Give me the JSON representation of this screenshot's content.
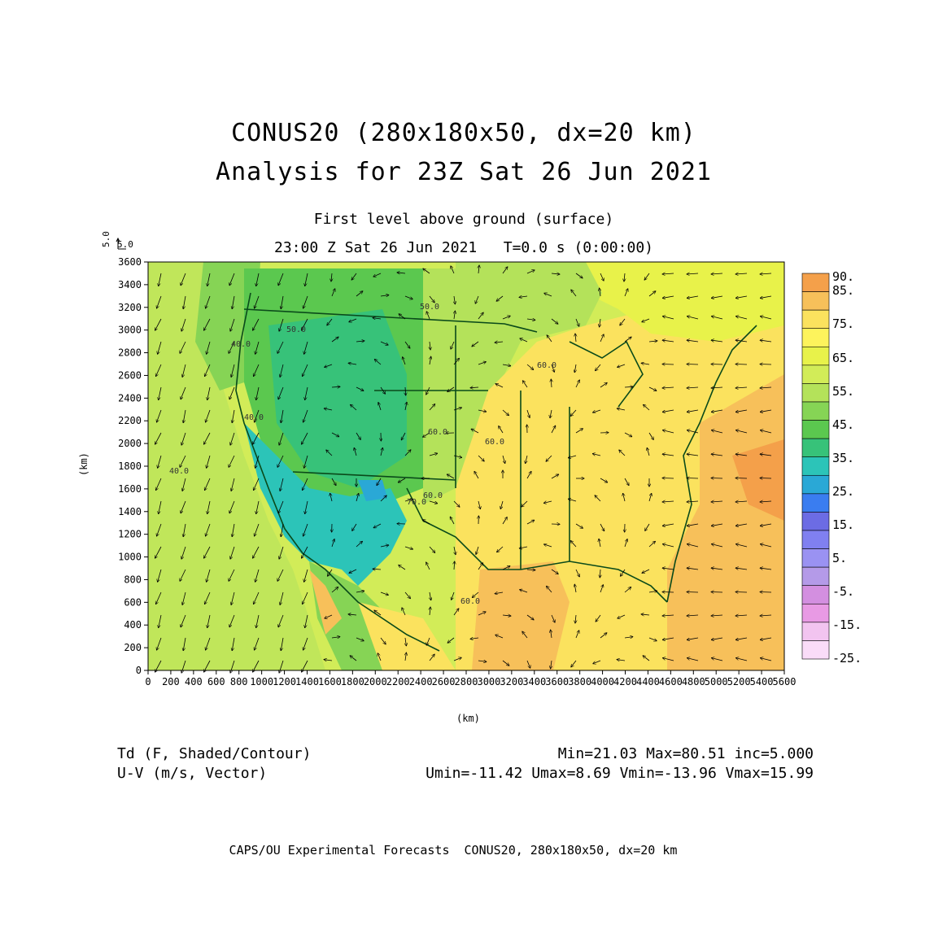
{
  "title": {
    "line1": "CONUS20 (280x180x50, dx=20 km)",
    "line2": "Analysis for 23Z Sat 26 Jun 2021"
  },
  "subtitle": {
    "level": "First level above ground (surface)",
    "time": "23:00 Z Sat 26 Jun 2021   T=0.0 s (0:00:00)"
  },
  "reference_vector": {
    "u_label": "5.0",
    "v_label": "5.0"
  },
  "axes": {
    "x_label": "(km)",
    "y_label": "(km)",
    "x_ticks": [
      "0",
      "200",
      "400",
      "600",
      "800",
      "1000",
      "1200",
      "1400",
      "1600",
      "1800",
      "2000",
      "2200",
      "2400",
      "2600",
      "2800",
      "3000",
      "3200",
      "3400",
      "3600",
      "3800",
      "4000",
      "4200",
      "4400",
      "4600",
      "4800",
      "5000",
      "5200",
      "5400",
      "5600"
    ],
    "y_ticks": [
      "0",
      "200",
      "400",
      "600",
      "800",
      "1000",
      "1200",
      "1400",
      "1600",
      "1800",
      "2000",
      "2200",
      "2400",
      "2600",
      "2800",
      "3000",
      "3200",
      "3400",
      "3600"
    ],
    "x_range": [
      0,
      5600
    ],
    "y_range": [
      0,
      3600
    ]
  },
  "colorbar": {
    "labels": [
      "90.",
      "85.",
      "75.",
      "65.",
      "55.",
      "45.",
      "35.",
      "25.",
      "15.",
      "5.",
      "-5.",
      "-15.",
      "-25."
    ],
    "colors": [
      "#f4a04a",
      "#f7c05a",
      "#fbe25e",
      "#fdf35c",
      "#e8f24a",
      "#d2ec58",
      "#b4e25a",
      "#86d455",
      "#5bc84f",
      "#37c279",
      "#2cc4b8",
      "#2aa8d6",
      "#3a7df0",
      "#6c6ce4",
      "#8080f0",
      "#9a92f2",
      "#b49ae8",
      "#d38fe0",
      "#e89ae4",
      "#f2c4f0",
      "#fadcf8"
    ]
  },
  "contour_labels": [
    "50.0",
    "50.0",
    "40.0",
    "40.0",
    "60.0",
    "60.0",
    "40.0",
    "60.0",
    "60.0",
    "60.0",
    "70.0"
  ],
  "field_info": {
    "td_label": "Td (F, Shaded/Contour)",
    "uv_label": "U-V (m/s, Vector)",
    "td_stats": "Min=21.03 Max=80.51 inc=5.000",
    "uv_stats": "Umin=-11.42 Umax=8.69 Vmin=-13.96 Vmax=15.99"
  },
  "footer": "CAPS/OU Experimental Forecasts  CONUS20, 280x180x50, dx=20 km"
}
